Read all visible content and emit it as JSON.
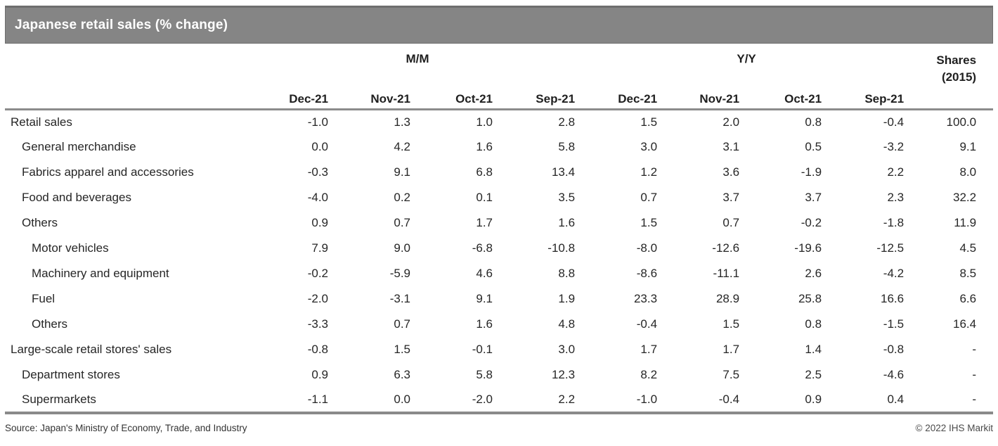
{
  "chart_data": {
    "type": "table",
    "title": "Japanese retail sales (% change)",
    "group_headers": {
      "mm": "M/M",
      "yy": "Y/Y",
      "shares_line1": "Shares",
      "shares_line2": "(2015)"
    },
    "month_columns": [
      "Dec-21",
      "Nov-21",
      "Oct-21",
      "Sep-21",
      "Dec-21",
      "Nov-21",
      "Oct-21",
      "Sep-21"
    ],
    "columns_note": "First four month columns are M/M, next four are Y/Y, last column is Shares (2015)",
    "rows": [
      {
        "label": "Retail sales",
        "indent": 0,
        "values": [
          "-1.0",
          "1.3",
          "1.0",
          "2.8",
          "1.5",
          "2.0",
          "0.8",
          "-0.4",
          "100.0"
        ]
      },
      {
        "label": "General merchandise",
        "indent": 1,
        "values": [
          "0.0",
          "4.2",
          "1.6",
          "5.8",
          "3.0",
          "3.1",
          "0.5",
          "-3.2",
          "9.1"
        ]
      },
      {
        "label": "Fabrics apparel and accessories",
        "indent": 1,
        "values": [
          "-0.3",
          "9.1",
          "6.8",
          "13.4",
          "1.2",
          "3.6",
          "-1.9",
          "2.2",
          "8.0"
        ]
      },
      {
        "label": "Food and beverages",
        "indent": 1,
        "values": [
          "-4.0",
          "0.2",
          "0.1",
          "3.5",
          "0.7",
          "3.7",
          "3.7",
          "2.3",
          "32.2"
        ]
      },
      {
        "label": "Others",
        "indent": 1,
        "values": [
          "0.9",
          "0.7",
          "1.7",
          "1.6",
          "1.5",
          "0.7",
          "-0.2",
          "-1.8",
          "11.9"
        ]
      },
      {
        "label": "Motor vehicles",
        "indent": 2,
        "values": [
          "7.9",
          "9.0",
          "-6.8",
          "-10.8",
          "-8.0",
          "-12.6",
          "-19.6",
          "-12.5",
          "4.5"
        ]
      },
      {
        "label": "Machinery and equipment",
        "indent": 2,
        "values": [
          "-0.2",
          "-5.9",
          "4.6",
          "8.8",
          "-8.6",
          "-11.1",
          "2.6",
          "-4.2",
          "8.5"
        ]
      },
      {
        "label": "Fuel",
        "indent": 2,
        "values": [
          "-2.0",
          "-3.1",
          "9.1",
          "1.9",
          "23.3",
          "28.9",
          "25.8",
          "16.6",
          "6.6"
        ]
      },
      {
        "label": "Others",
        "indent": 2,
        "values": [
          "-3.3",
          "0.7",
          "1.6",
          "4.8",
          "-0.4",
          "1.5",
          "0.8",
          "-1.5",
          "16.4"
        ]
      },
      {
        "label": "Large-scale retail stores' sales",
        "indent": 0,
        "values": [
          "-0.8",
          "1.5",
          "-0.1",
          "3.0",
          "1.7",
          "1.7",
          "1.4",
          "-0.8",
          "-"
        ]
      },
      {
        "label": "Department stores",
        "indent": 1,
        "values": [
          "0.9",
          "6.3",
          "5.8",
          "12.3",
          "8.2",
          "7.5",
          "2.5",
          "-4.6",
          "-"
        ]
      },
      {
        "label": "Supermarkets",
        "indent": 1,
        "values": [
          "-1.1",
          "0.0",
          "-2.0",
          "2.2",
          "-1.0",
          "-0.4",
          "0.9",
          "0.4",
          "-"
        ]
      }
    ]
  },
  "footer": {
    "source": "Source: Japan's Ministry of Economy, Trade, and Industry",
    "copyright": "© 2022 IHS Markit"
  },
  "colors": {
    "title_bar_bg": "#858585",
    "title_bar_border": "#6e6e6e",
    "title_text": "#ffffff",
    "rule_gray": "#8c8c8c",
    "body_text": "#262626"
  }
}
